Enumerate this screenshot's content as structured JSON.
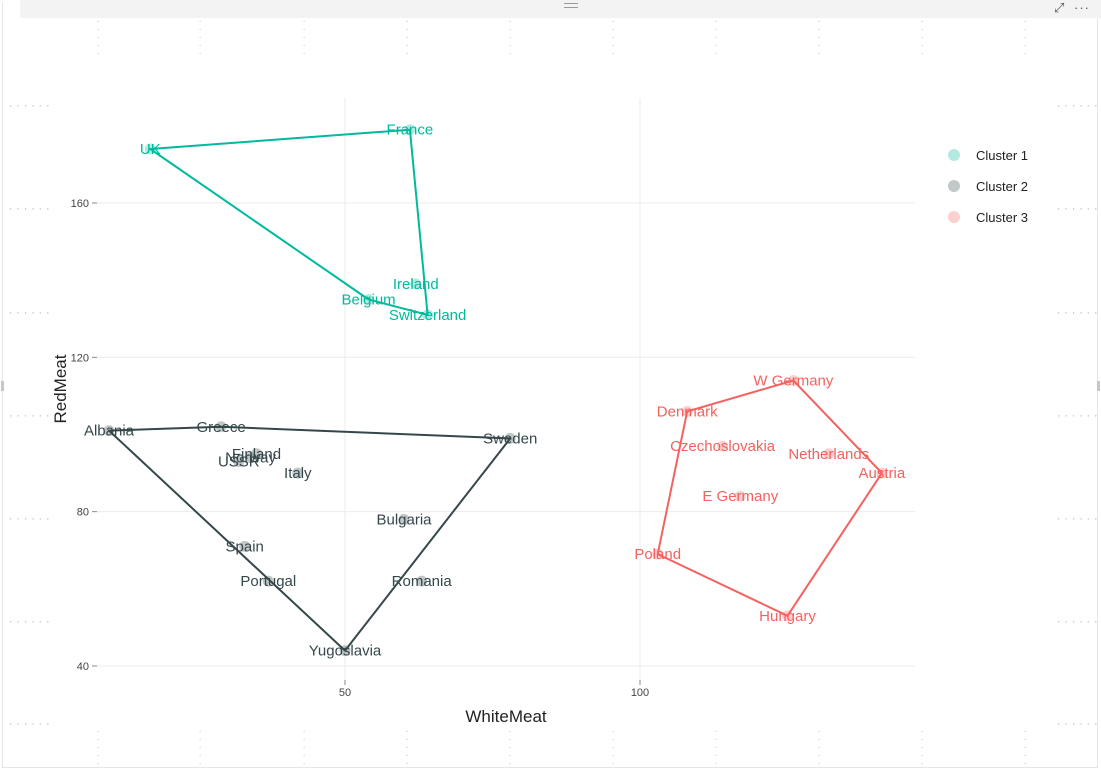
{
  "toolbar": {
    "grip_icon": "drag-handle-icon",
    "focus_icon": "focus-mode-icon",
    "more_icon": "more-options-icon"
  },
  "chart_data": {
    "type": "scatter",
    "xlabel": "WhiteMeat",
    "ylabel": "RedMeat",
    "xlim": [
      2,
      97
    ],
    "ylim": [
      37,
      184
    ],
    "xticks": [
      50,
      100
    ],
    "yticks": [
      40,
      80,
      120,
      160
    ],
    "grid": true,
    "legend_position": "right",
    "series": [
      {
        "name": "Cluster 1",
        "color": "#00BA9E",
        "hull": [
          "UK",
          "France",
          "Switzerland",
          "Belgium"
        ],
        "points": [
          {
            "label": "UK",
            "x": 17.0,
            "y": 174.0
          },
          {
            "label": "France",
            "x": 61.0,
            "y": 179.0
          },
          {
            "label": "Ireland",
            "x": 62.0,
            "y": 139.0
          },
          {
            "label": "Belgium",
            "x": 54.0,
            "y": 135.0
          },
          {
            "label": "Switzerland",
            "x": 64.0,
            "y": 131.0
          }
        ]
      },
      {
        "name": "Cluster 2",
        "color": "#34474A",
        "hull": [
          "Albania",
          "Greece",
          "Sweden",
          "Yugoslavia"
        ],
        "points": [
          {
            "label": "Albania",
            "x": 10.0,
            "y": 101.0
          },
          {
            "label": "Greece",
            "x": 29.0,
            "y": 102.0
          },
          {
            "label": "Sweden",
            "x": 78.0,
            "y": 99.0
          },
          {
            "label": "Finland",
            "x": 35.0,
            "y": 95.0
          },
          {
            "label": "Norway",
            "x": 34.0,
            "y": 94.0
          },
          {
            "label": "USSR",
            "x": 32.0,
            "y": 93.0
          },
          {
            "label": "Italy",
            "x": 42.0,
            "y": 90.0
          },
          {
            "label": "Bulgaria",
            "x": 60.0,
            "y": 78.0
          },
          {
            "label": "Spain",
            "x": 33.0,
            "y": 71.0
          },
          {
            "label": "Portugal",
            "x": 37.0,
            "y": 62.0
          },
          {
            "label": "Romania",
            "x": 63.0,
            "y": 62.0
          },
          {
            "label": "Yugoslavia",
            "x": 50.0,
            "y": 44.0
          }
        ]
      },
      {
        "name": "Cluster 3",
        "color": "#F3625F",
        "hull": [
          "W Germany",
          "Austria",
          "Hungary",
          "Poland",
          "Denmark"
        ],
        "points": [
          {
            "label": "W Germany",
            "x": 126.0,
            "y": 114.0
          },
          {
            "label": "Denmark",
            "x": 108.0,
            "y": 106.0
          },
          {
            "label": "Czechoslovakia",
            "x": 114.0,
            "y": 97.0
          },
          {
            "label": "Netherlands",
            "x": 132.0,
            "y": 95.0
          },
          {
            "label": "Austria",
            "x": 141.0,
            "y": 90.0
          },
          {
            "label": "E Germany",
            "x": 117.0,
            "y": 84.0
          },
          {
            "label": "Poland",
            "x": 103.0,
            "y": 69.0
          },
          {
            "label": "Hungary",
            "x": 125.0,
            "y": 53.0
          }
        ]
      }
    ]
  }
}
